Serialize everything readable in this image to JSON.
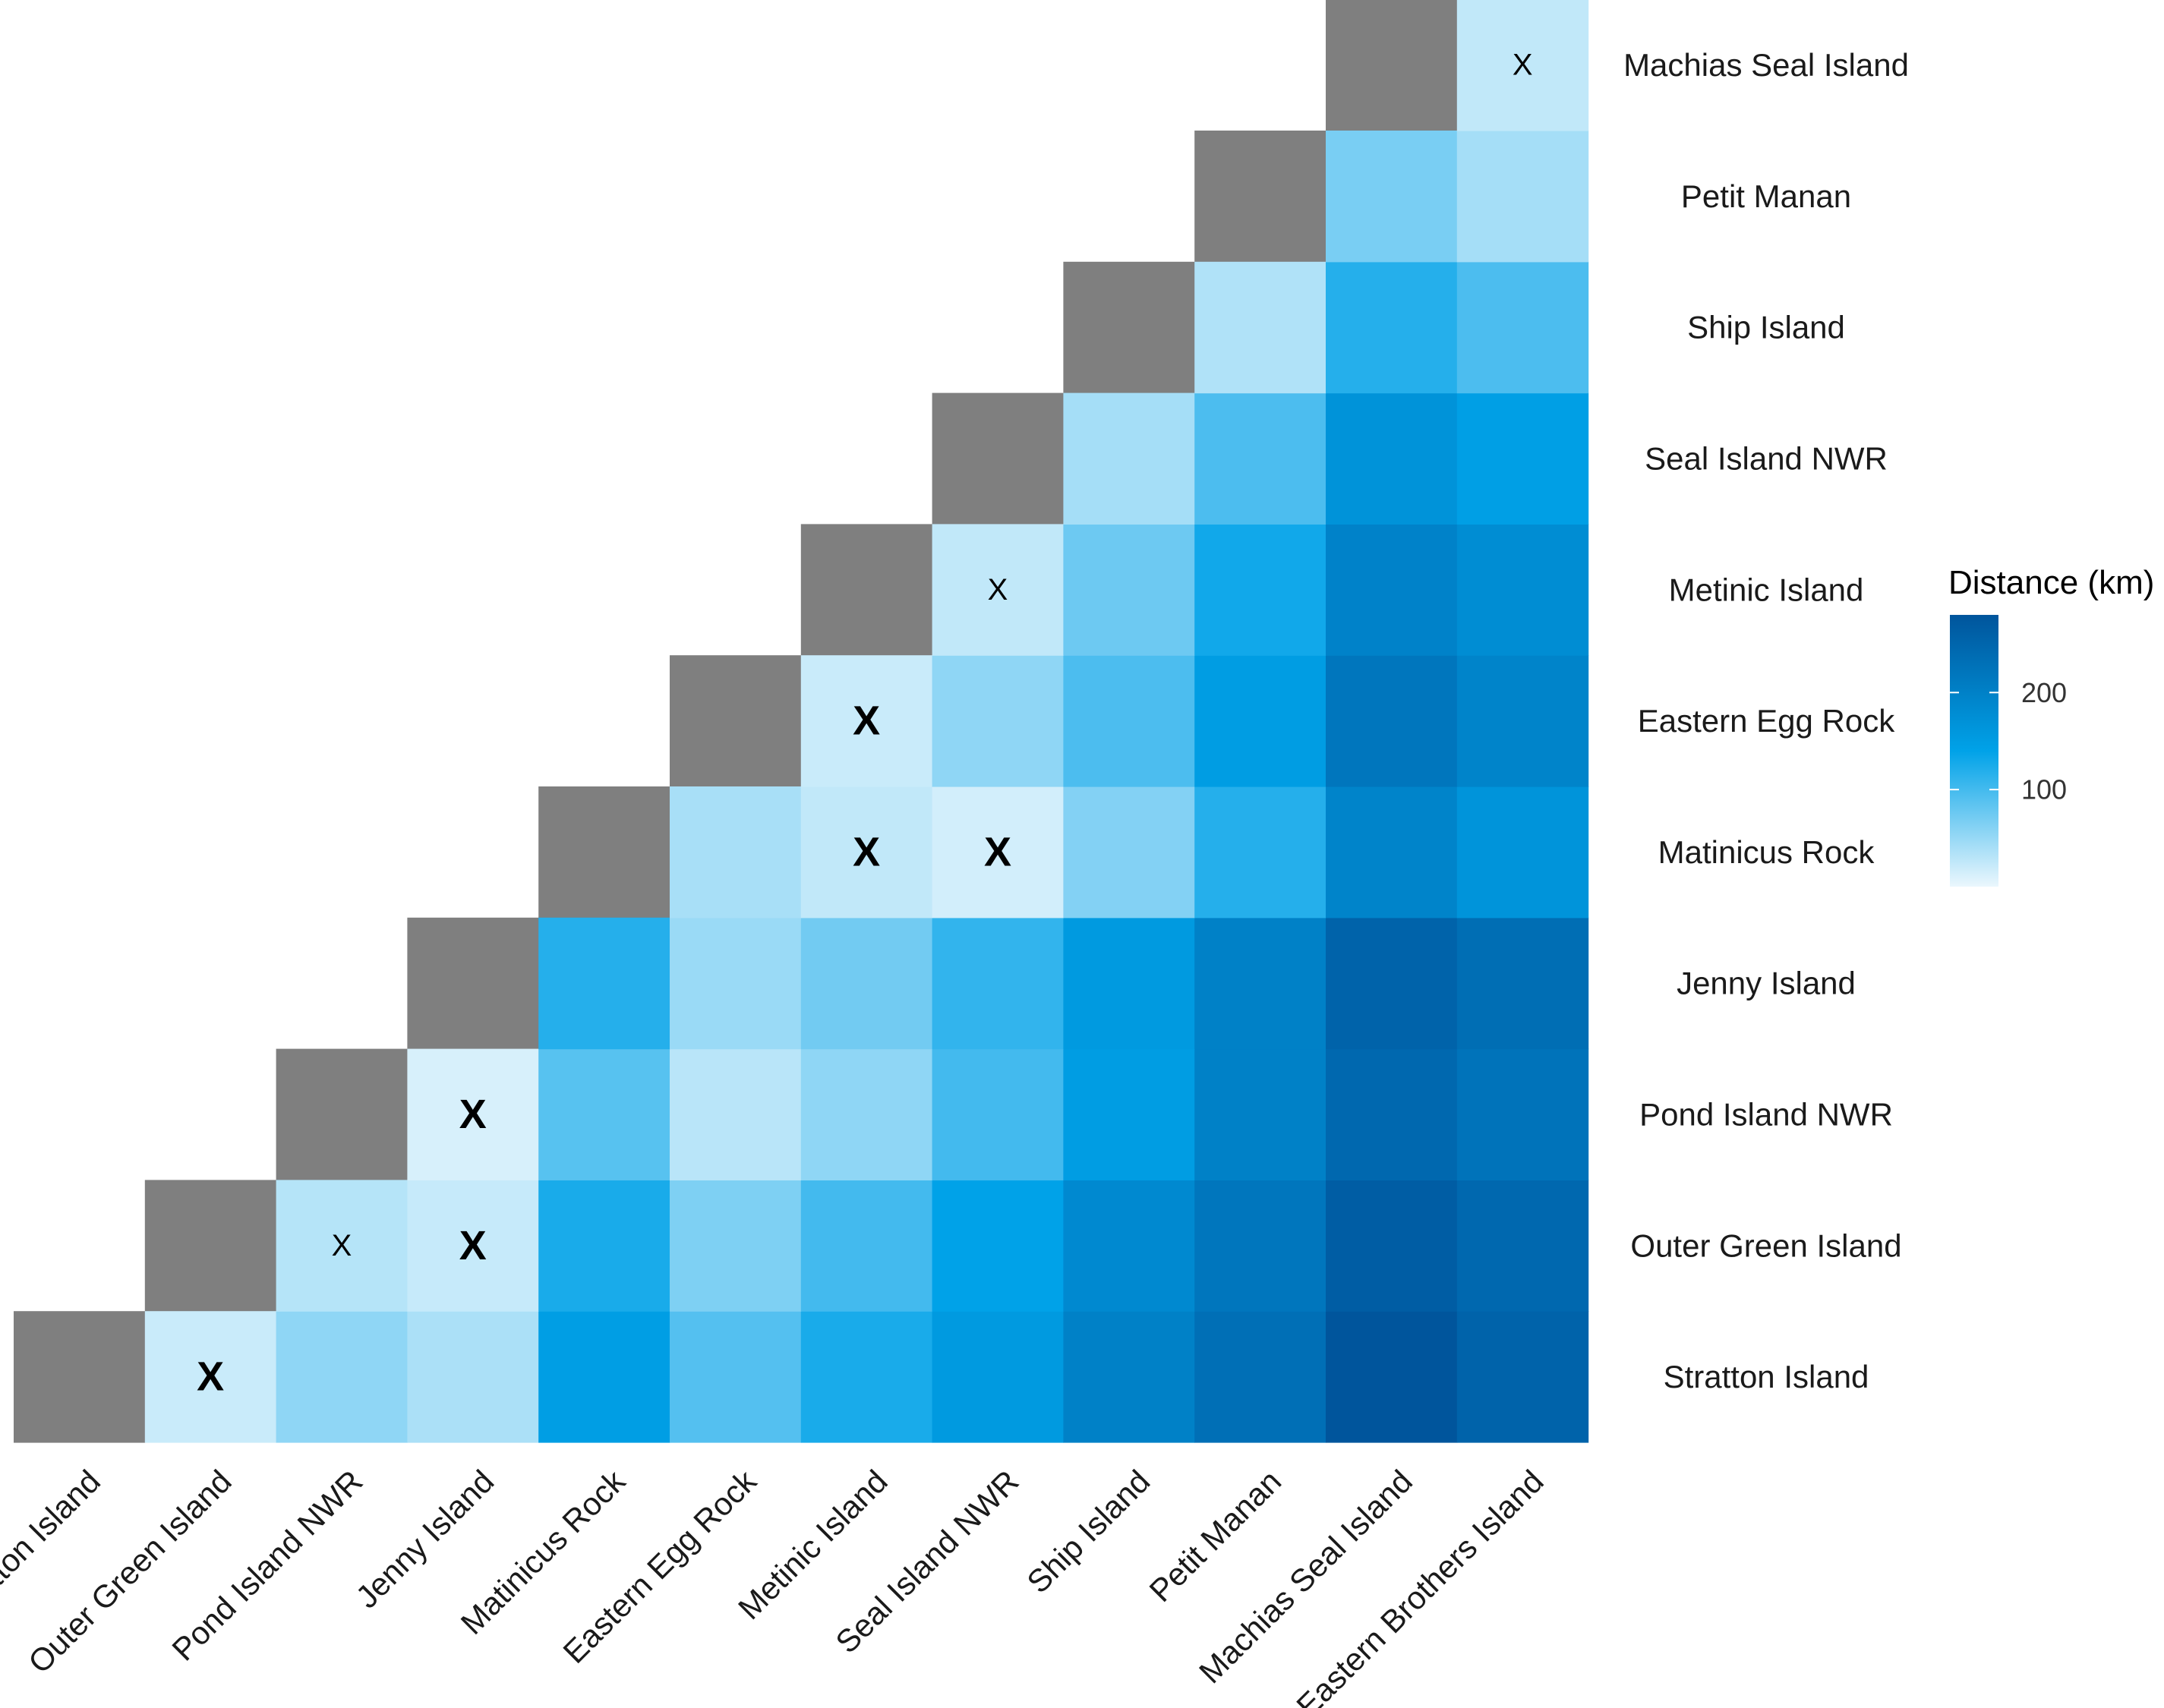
{
  "chart_data": {
    "type": "heatmap",
    "title": "",
    "xlabel": "",
    "ylabel": "",
    "categories": [
      "Stratton Island",
      "Outer Green Island",
      "Pond Island NWR",
      "Jenny Island",
      "Matinicus Rock",
      "Eastern Egg Rock",
      "Metinic Island",
      "Seal Island NWR",
      "Ship Island",
      "Petit Manan",
      "Machias Seal Island",
      "Eastern Brothers Island"
    ],
    "colorbar": {
      "title": "Distance (km)",
      "range": [
        0,
        280
      ],
      "ticks": [
        100,
        200
      ],
      "colors": [
        "#ebf7fd",
        "#00a2e8",
        "#00559c"
      ]
    },
    "diagonal_color": "#7f7f7f",
    "cells": [
      {
        "x": "Outer Green Island",
        "y": "Stratton Island",
        "value": 20,
        "mark": "bold"
      },
      {
        "x": "Pond Island NWR",
        "y": "Stratton Island",
        "value": 55,
        "mark": ""
      },
      {
        "x": "Jenny Island",
        "y": "Stratton Island",
        "value": 38,
        "mark": ""
      },
      {
        "x": "Matinicus Rock",
        "y": "Stratton Island",
        "value": 148,
        "mark": ""
      },
      {
        "x": "Eastern Egg Rock",
        "y": "Stratton Island",
        "value": 90,
        "mark": ""
      },
      {
        "x": "Metinic Island",
        "y": "Stratton Island",
        "value": 125,
        "mark": ""
      },
      {
        "x": "Seal Island NWR",
        "y": "Stratton Island",
        "value": 155,
        "mark": ""
      },
      {
        "x": "Ship Island",
        "y": "Stratton Island",
        "value": 200,
        "mark": ""
      },
      {
        "x": "Petit Manan",
        "y": "Stratton Island",
        "value": 232,
        "mark": ""
      },
      {
        "x": "Machias Seal Island",
        "y": "Stratton Island",
        "value": 280,
        "mark": ""
      },
      {
        "x": "Eastern Brothers Island",
        "y": "Stratton Island",
        "value": 255,
        "mark": ""
      },
      {
        "x": "Pond Island NWR",
        "y": "Outer Green Island",
        "value": 32,
        "mark": "normal"
      },
      {
        "x": "Jenny Island",
        "y": "Outer Green Island",
        "value": 22,
        "mark": "bold"
      },
      {
        "x": "Matinicus Rock",
        "y": "Outer Green Island",
        "value": 125,
        "mark": ""
      },
      {
        "x": "Eastern Egg Rock",
        "y": "Outer Green Island",
        "value": 65,
        "mark": ""
      },
      {
        "x": "Metinic Island",
        "y": "Outer Green Island",
        "value": 100,
        "mark": ""
      },
      {
        "x": "Seal Island NWR",
        "y": "Outer Green Island",
        "value": 140,
        "mark": ""
      },
      {
        "x": "Ship Island",
        "y": "Outer Green Island",
        "value": 185,
        "mark": ""
      },
      {
        "x": "Petit Manan",
        "y": "Outer Green Island",
        "value": 220,
        "mark": ""
      },
      {
        "x": "Machias Seal Island",
        "y": "Outer Green Island",
        "value": 265,
        "mark": ""
      },
      {
        "x": "Eastern Brothers Island",
        "y": "Outer Green Island",
        "value": 245,
        "mark": ""
      },
      {
        "x": "Jenny Island",
        "y": "Pond Island NWR",
        "value": 12,
        "mark": "bold"
      },
      {
        "x": "Matinicus Rock",
        "y": "Pond Island NWR",
        "value": 88,
        "mark": ""
      },
      {
        "x": "Eastern Egg Rock",
        "y": "Pond Island NWR",
        "value": 30,
        "mark": ""
      },
      {
        "x": "Metinic Island",
        "y": "Pond Island NWR",
        "value": 55,
        "mark": ""
      },
      {
        "x": "Seal Island NWR",
        "y": "Pond Island NWR",
        "value": 100,
        "mark": ""
      },
      {
        "x": "Ship Island",
        "y": "Pond Island NWR",
        "value": 150,
        "mark": ""
      },
      {
        "x": "Petit Manan",
        "y": "Pond Island NWR",
        "value": 200,
        "mark": ""
      },
      {
        "x": "Machias Seal Island",
        "y": "Pond Island NWR",
        "value": 245,
        "mark": ""
      },
      {
        "x": "Eastern Brothers Island",
        "y": "Pond Island NWR",
        "value": 225,
        "mark": ""
      },
      {
        "x": "Matinicus Rock",
        "y": "Jenny Island",
        "value": 118,
        "mark": ""
      },
      {
        "x": "Eastern Egg Rock",
        "y": "Jenny Island",
        "value": 48,
        "mark": ""
      },
      {
        "x": "Metinic Island",
        "y": "Jenny Island",
        "value": 72,
        "mark": ""
      },
      {
        "x": "Seal Island NWR",
        "y": "Jenny Island",
        "value": 110,
        "mark": ""
      },
      {
        "x": "Ship Island",
        "y": "Jenny Island",
        "value": 155,
        "mark": ""
      },
      {
        "x": "Petit Manan",
        "y": "Jenny Island",
        "value": 200,
        "mark": ""
      },
      {
        "x": "Machias Seal Island",
        "y": "Jenny Island",
        "value": 255,
        "mark": ""
      },
      {
        "x": "Eastern Brothers Island",
        "y": "Jenny Island",
        "value": 235,
        "mark": ""
      },
      {
        "x": "Eastern Egg Rock",
        "y": "Matinicus Rock",
        "value": 40,
        "mark": ""
      },
      {
        "x": "Metinic Island",
        "y": "Matinicus Rock",
        "value": 25,
        "mark": "bold"
      },
      {
        "x": "Seal Island NWR",
        "y": "Matinicus Rock",
        "value": 15,
        "mark": "bold"
      },
      {
        "x": "Ship Island",
        "y": "Matinicus Rock",
        "value": 62,
        "mark": ""
      },
      {
        "x": "Petit Manan",
        "y": "Matinicus Rock",
        "value": 118,
        "mark": ""
      },
      {
        "x": "Machias Seal Island",
        "y": "Matinicus Rock",
        "value": 195,
        "mark": ""
      },
      {
        "x": "Eastern Brothers Island",
        "y": "Matinicus Rock",
        "value": 165,
        "mark": ""
      },
      {
        "x": "Metinic Island",
        "y": "Eastern Egg Rock",
        "value": 20,
        "mark": "bold"
      },
      {
        "x": "Seal Island NWR",
        "y": "Eastern Egg Rock",
        "value": 55,
        "mark": ""
      },
      {
        "x": "Ship Island",
        "y": "Eastern Egg Rock",
        "value": 95,
        "mark": ""
      },
      {
        "x": "Petit Manan",
        "y": "Eastern Egg Rock",
        "value": 150,
        "mark": ""
      },
      {
        "x": "Machias Seal Island",
        "y": "Eastern Egg Rock",
        "value": 220,
        "mark": ""
      },
      {
        "x": "Eastern Brothers Island",
        "y": "Eastern Egg Rock",
        "value": 195,
        "mark": ""
      },
      {
        "x": "Seal Island NWR",
        "y": "Metinic Island",
        "value": 25,
        "mark": "normal"
      },
      {
        "x": "Ship Island",
        "y": "Metinic Island",
        "value": 75,
        "mark": ""
      },
      {
        "x": "Petit Manan",
        "y": "Metinic Island",
        "value": 130,
        "mark": ""
      },
      {
        "x": "Machias Seal Island",
        "y": "Metinic Island",
        "value": 198,
        "mark": ""
      },
      {
        "x": "Eastern Brothers Island",
        "y": "Metinic Island",
        "value": 178,
        "mark": ""
      },
      {
        "x": "Ship Island",
        "y": "Seal Island NWR",
        "value": 42,
        "mark": ""
      },
      {
        "x": "Petit Manan",
        "y": "Seal Island NWR",
        "value": 95,
        "mark": ""
      },
      {
        "x": "Machias Seal Island",
        "y": "Seal Island NWR",
        "value": 168,
        "mark": ""
      },
      {
        "x": "Eastern Brothers Island",
        "y": "Seal Island NWR",
        "value": 145,
        "mark": ""
      },
      {
        "x": "Petit Manan",
        "y": "Ship Island",
        "value": 35,
        "mark": ""
      },
      {
        "x": "Machias Seal Island",
        "y": "Ship Island",
        "value": 118,
        "mark": ""
      },
      {
        "x": "Eastern Brothers Island",
        "y": "Ship Island",
        "value": 95,
        "mark": ""
      },
      {
        "x": "Machias Seal Island",
        "y": "Petit Manan",
        "value": 68,
        "mark": ""
      },
      {
        "x": "Eastern Brothers Island",
        "y": "Petit Manan",
        "value": 42,
        "mark": ""
      },
      {
        "x": "Eastern Brothers Island",
        "y": "Machias Seal Island",
        "value": 25,
        "mark": "normal"
      }
    ],
    "grid": false,
    "legend": "right"
  }
}
